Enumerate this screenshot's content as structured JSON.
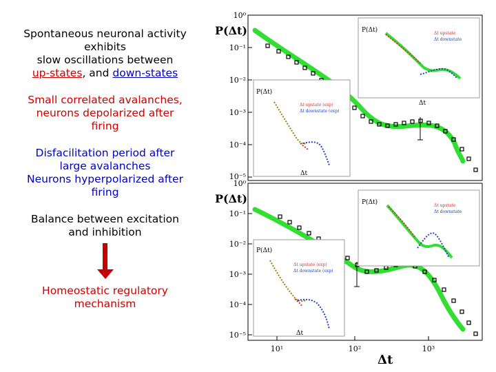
{
  "text_blocks": {
    "block1": {
      "line1": "Spontaneous neuronal activity",
      "line2": "exhibits",
      "line3": "slow oscillations between",
      "up_states": "up-states",
      "sep": ", and ",
      "down_states": "down-states"
    },
    "block2": {
      "line1": "Small correlated avalanches,",
      "line2": "neurons depolarized after",
      "line3": "firing"
    },
    "block3": {
      "line1": "Disfacilitation period after",
      "line2": "large avalanches",
      "line3": "Neurons hyperpolarized after",
      "line4": "firing"
    },
    "block4": {
      "line1": "Balance between excitation",
      "line2": "and inhibition"
    },
    "block5": {
      "line1": "Homeostatic regulatory",
      "line2": "mechanism"
    }
  },
  "colors": {
    "red": "#d00000",
    "blue": "#0000c8",
    "arrow": "#c40000",
    "green_curve": "#33dd33",
    "inset_red": "#e03030",
    "inset_blue": "#2040c0",
    "inset_olive": "#a08000"
  },
  "figure": {
    "top_ylabel": "P(Δt)",
    "bottom_ylabel": "P(Δt)",
    "xlabel": "Δt",
    "top_yticks": [
      "10⁰",
      "10⁻¹",
      "10⁻²",
      "10⁻³",
      "10⁻⁴",
      "10⁻⁵"
    ],
    "bottom_yticks": [
      "10⁰",
      "10⁻¹",
      "10⁻²",
      "10⁻³",
      "10⁻⁴",
      "10⁻⁵"
    ],
    "xticks": [
      "10¹",
      "10²",
      "10³"
    ],
    "insets": {
      "top_right_ylabel": "P(Δt)",
      "top_right_xlabel": "Δt",
      "top_right_legend": [
        "Δt upstate",
        "Δt downstate"
      ],
      "top_left_ylabel": "P(Δt)",
      "top_left_xlabel": "Δt",
      "top_left_legend": [
        "Δt upstate (exp)",
        "Δt downstate (exp)"
      ],
      "bottom_right_ylabel": "P(Δt)",
      "bottom_right_legend": [
        "Δt upstate",
        "Δt downstate"
      ],
      "bottom_left_ylabel": "P(Δt)",
      "bottom_left_xlabel": "Δt",
      "bottom_left_legend": [
        "Δt upstate (exp)",
        "Δt downstate (exp)"
      ]
    }
  }
}
